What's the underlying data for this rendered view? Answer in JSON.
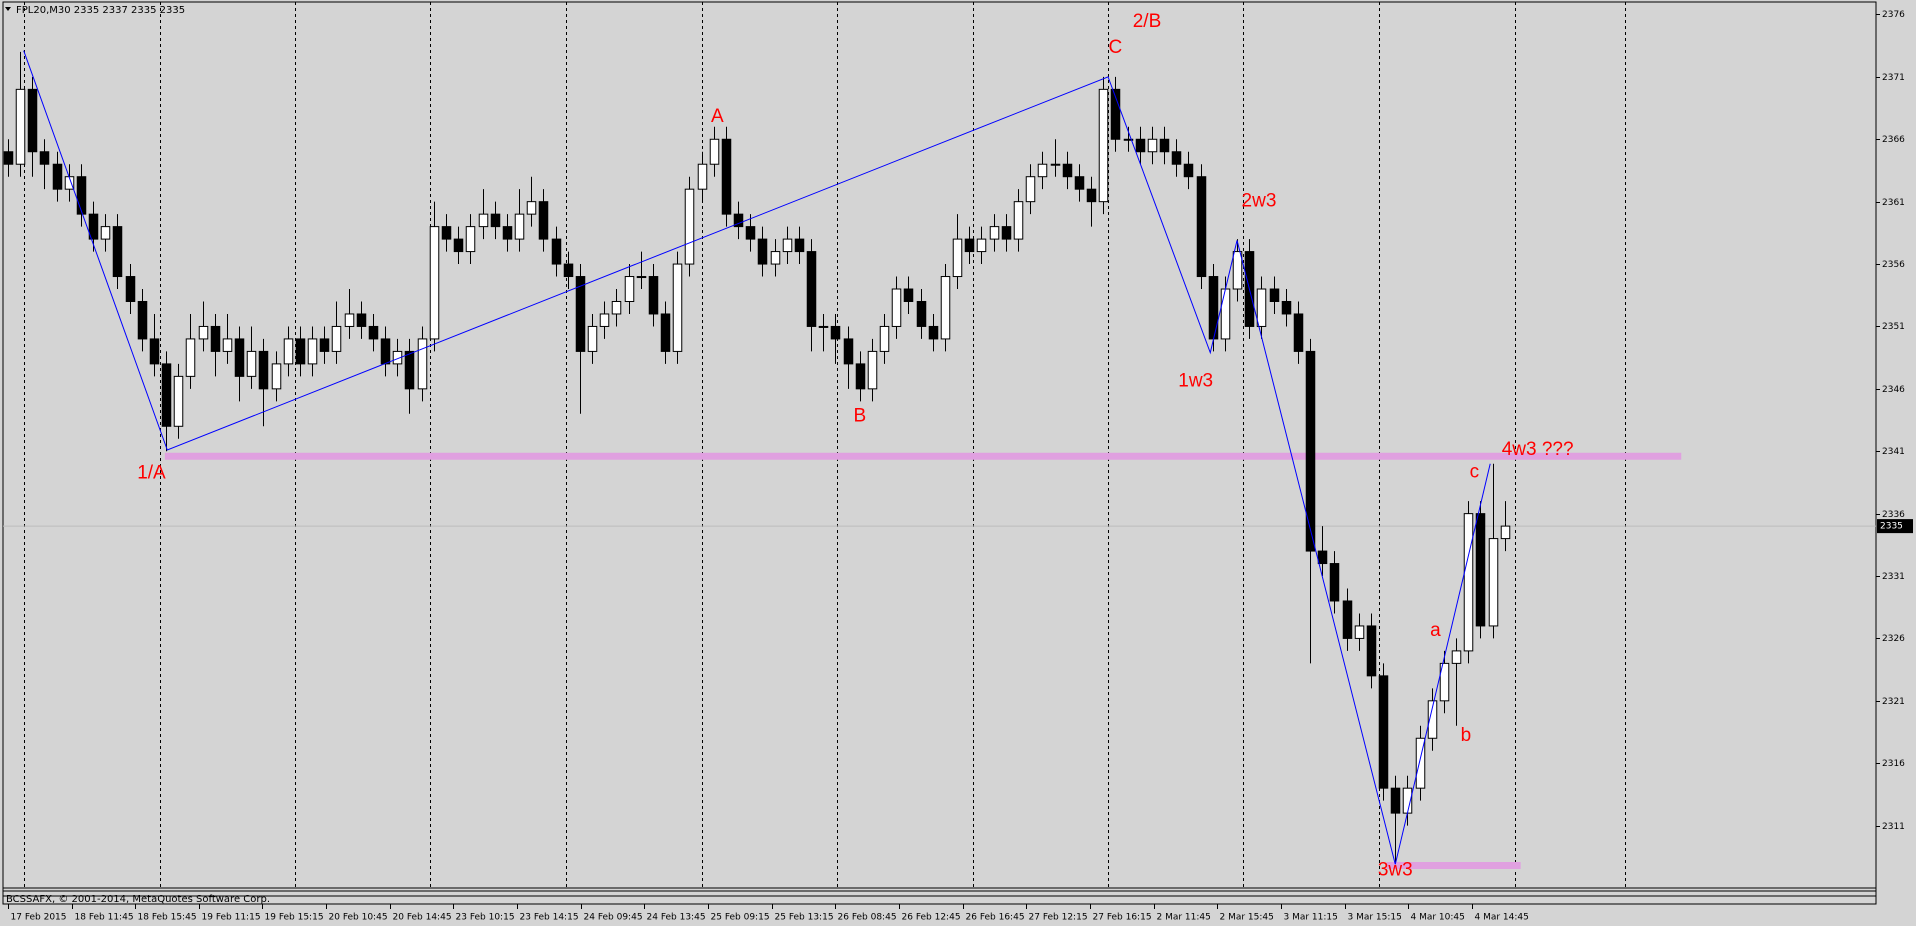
{
  "chart_data": {
    "type": "candlestick",
    "title": "FPL20,M30  2335 2337 2335 2335",
    "footer": "BCSSAFX, © 2001-2014, MetaQuotes Software Corp.",
    "current_price": 2335,
    "xlim": [
      -0.4,
      153.5
    ],
    "ylim": [
      2306,
      2377
    ],
    "yticks": [
      2311,
      2316,
      2321,
      2326,
      2331,
      2336,
      2341,
      2346,
      2351,
      2356,
      2361,
      2366,
      2371,
      2376
    ],
    "xticks": [
      {
        "value": 0,
        "label": "17 Feb 2015"
      },
      {
        "value": 5.23,
        "label": "18 Feb 11:45"
      },
      {
        "value": 10.46,
        "label": "18 Feb 15:45"
      },
      {
        "value": 15.69,
        "label": "19 Feb 11:15"
      },
      {
        "value": 20.92,
        "label": "19 Feb 15:15"
      },
      {
        "value": 26.15,
        "label": "20 Feb 10:45"
      },
      {
        "value": 31.38,
        "label": "20 Feb 14:45"
      },
      {
        "value": 36.61,
        "label": "23 Feb 10:15"
      },
      {
        "value": 41.84,
        "label": "23 Feb 14:15"
      },
      {
        "value": 47.07,
        "label": "24 Feb 09:45"
      },
      {
        "value": 52.3,
        "label": "24 Feb 13:45"
      },
      {
        "value": 57.53,
        "label": "25 Feb 09:15"
      },
      {
        "value": 62.76,
        "label": "25 Feb 13:15"
      },
      {
        "value": 67.99,
        "label": "26 Feb 08:45"
      },
      {
        "value": 73.22,
        "label": "26 Feb 12:45"
      },
      {
        "value": 78.45,
        "label": "26 Feb 16:45"
      },
      {
        "value": 83.68,
        "label": "27 Feb 12:15"
      },
      {
        "value": 88.91,
        "label": "27 Feb 16:15"
      },
      {
        "value": 94.14,
        "label": "2 Mar 11:45"
      },
      {
        "value": 99.37,
        "label": "2 Mar 15:45"
      },
      {
        "value": 104.6,
        "label": "3 Mar 11:15"
      },
      {
        "value": 109.83,
        "label": "3 Mar 15:15"
      },
      {
        "value": 115.06,
        "label": "4 Mar 10:45"
      },
      {
        "value": 120.29,
        "label": "4 Mar 14:45"
      }
    ],
    "separators": [
      1.3,
      12.5,
      23.6,
      34.7,
      45.9,
      57,
      68.1,
      79.3,
      90.4,
      101.5,
      112.7,
      123.8,
      132.9
    ],
    "up_color": "#ffffff",
    "down_color": "#000000",
    "ohlc": [
      [
        2365,
        2366,
        2363,
        2364
      ],
      [
        2364,
        2373,
        2363,
        2370
      ],
      [
        2370,
        2371,
        2363,
        2365
      ],
      [
        2365,
        2366,
        2362,
        2364
      ],
      [
        2364,
        2365,
        2361,
        2362
      ],
      [
        2362,
        2364,
        2361,
        2363
      ],
      [
        2363,
        2364,
        2359,
        2360
      ],
      [
        2360,
        2361,
        2357,
        2358
      ],
      [
        2358,
        2360,
        2357,
        2359
      ],
      [
        2359,
        2360,
        2354,
        2355
      ],
      [
        2355,
        2356,
        2352,
        2353
      ],
      [
        2353,
        2354,
        2349,
        2350
      ],
      [
        2350,
        2352,
        2347,
        2348
      ],
      [
        2348,
        2349,
        2341,
        2343
      ],
      [
        2343,
        2348,
        2342,
        2347
      ],
      [
        2347,
        2352,
        2346,
        2350
      ],
      [
        2350,
        2353,
        2349,
        2351
      ],
      [
        2351,
        2352,
        2347,
        2349
      ],
      [
        2349,
        2352,
        2348,
        2350
      ],
      [
        2350,
        2351,
        2345,
        2347
      ],
      [
        2347,
        2351,
        2346,
        2349
      ],
      [
        2349,
        2350,
        2343,
        2346
      ],
      [
        2346,
        2349,
        2345,
        2348
      ],
      [
        2348,
        2351,
        2347,
        2350
      ],
      [
        2350,
        2351,
        2347,
        2348
      ],
      [
        2348,
        2351,
        2347,
        2350
      ],
      [
        2350,
        2351,
        2348,
        2349
      ],
      [
        2349,
        2353,
        2348,
        2351
      ],
      [
        2351,
        2354,
        2350,
        2352
      ],
      [
        2352,
        2353,
        2350,
        2351
      ],
      [
        2351,
        2352,
        2349,
        2350
      ],
      [
        2350,
        2351,
        2347,
        2348
      ],
      [
        2348,
        2350,
        2347,
        2349
      ],
      [
        2349,
        2350,
        2344,
        2346
      ],
      [
        2346,
        2351,
        2345,
        2350
      ],
      [
        2350,
        2361,
        2349,
        2359
      ],
      [
        2359,
        2360,
        2357,
        2358
      ],
      [
        2358,
        2359,
        2356,
        2357
      ],
      [
        2357,
        2360,
        2356,
        2359
      ],
      [
        2359,
        2362,
        2358,
        2360
      ],
      [
        2360,
        2361,
        2358,
        2359
      ],
      [
        2359,
        2360,
        2357,
        2358
      ],
      [
        2358,
        2362,
        2357,
        2360
      ],
      [
        2360,
        2363,
        2359,
        2361
      ],
      [
        2361,
        2362,
        2357,
        2358
      ],
      [
        2358,
        2359,
        2355,
        2356
      ],
      [
        2356,
        2357,
        2354,
        2355
      ],
      [
        2355,
        2356,
        2344,
        2349
      ],
      [
        2349,
        2352,
        2348,
        2351
      ],
      [
        2351,
        2353,
        2350,
        2352
      ],
      [
        2352,
        2354,
        2351,
        2353
      ],
      [
        2353,
        2356,
        2352,
        2355
      ],
      [
        2355,
        2357,
        2354,
        2355
      ],
      [
        2355,
        2356,
        2351,
        2352
      ],
      [
        2352,
        2353,
        2348,
        2349
      ],
      [
        2349,
        2357,
        2348,
        2356
      ],
      [
        2356,
        2363,
        2355,
        2362
      ],
      [
        2362,
        2365,
        2361,
        2364
      ],
      [
        2364,
        2367,
        2363,
        2366
      ],
      [
        2366,
        2367,
        2359,
        2360
      ],
      [
        2360,
        2361,
        2358,
        2359
      ],
      [
        2359,
        2360,
        2357,
        2358
      ],
      [
        2358,
        2359,
        2355,
        2356
      ],
      [
        2356,
        2358,
        2355,
        2357
      ],
      [
        2357,
        2359,
        2356,
        2358
      ],
      [
        2358,
        2359,
        2356,
        2357
      ],
      [
        2357,
        2358,
        2349,
        2351
      ],
      [
        2351,
        2352,
        2349,
        2351
      ],
      [
        2351,
        2352,
        2348,
        2350
      ],
      [
        2350,
        2351,
        2346,
        2348
      ],
      [
        2348,
        2349,
        2345,
        2346
      ],
      [
        2346,
        2350,
        2345,
        2349
      ],
      [
        2349,
        2352,
        2348,
        2351
      ],
      [
        2351,
        2355,
        2350,
        2354
      ],
      [
        2354,
        2355,
        2352,
        2353
      ],
      [
        2353,
        2354,
        2350,
        2351
      ],
      [
        2351,
        2352,
        2349,
        2350
      ],
      [
        2350,
        2356,
        2349,
        2355
      ],
      [
        2355,
        2360,
        2354,
        2358
      ],
      [
        2358,
        2359,
        2356,
        2357
      ],
      [
        2357,
        2359,
        2356,
        2358
      ],
      [
        2358,
        2360,
        2357,
        2359
      ],
      [
        2359,
        2360,
        2357,
        2358
      ],
      [
        2358,
        2362,
        2357,
        2361
      ],
      [
        2361,
        2364,
        2360,
        2363
      ],
      [
        2363,
        2365,
        2362,
        2364
      ],
      [
        2364,
        2366,
        2363,
        2364
      ],
      [
        2364,
        2365,
        2362,
        2363
      ],
      [
        2363,
        2364,
        2361,
        2362
      ],
      [
        2362,
        2363,
        2359,
        2361
      ],
      [
        2361,
        2371,
        2360,
        2370
      ],
      [
        2370,
        2371,
        2365,
        2366
      ],
      [
        2366,
        2367,
        2365,
        2366
      ],
      [
        2366,
        2367,
        2364,
        2365
      ],
      [
        2365,
        2367,
        2364,
        2366
      ],
      [
        2366,
        2367,
        2364,
        2365
      ],
      [
        2365,
        2366,
        2363,
        2364
      ],
      [
        2364,
        2365,
        2362,
        2363
      ],
      [
        2363,
        2364,
        2354,
        2355
      ],
      [
        2355,
        2356,
        2349,
        2350
      ],
      [
        2350,
        2355,
        2349,
        2354
      ],
      [
        2354,
        2358,
        2353,
        2357
      ],
      [
        2357,
        2358,
        2350,
        2351
      ],
      [
        2351,
        2355,
        2350,
        2354
      ],
      [
        2354,
        2355,
        2352,
        2353
      ],
      [
        2353,
        2354,
        2351,
        2352
      ],
      [
        2352,
        2353,
        2348,
        2349
      ],
      [
        2349,
        2350,
        2324,
        2333
      ],
      [
        2333,
        2335,
        2331,
        2332
      ],
      [
        2332,
        2333,
        2328,
        2329
      ],
      [
        2329,
        2330,
        2325,
        2326
      ],
      [
        2326,
        2328,
        2325,
        2327
      ],
      [
        2327,
        2328,
        2322,
        2323
      ],
      [
        2323,
        2324,
        2313,
        2314
      ],
      [
        2314,
        2315,
        2308,
        2312
      ],
      [
        2312,
        2315,
        2311,
        2314
      ],
      [
        2314,
        2319,
        2313,
        2318
      ],
      [
        2318,
        2322,
        2317,
        2321
      ],
      [
        2321,
        2325,
        2320,
        2324
      ],
      [
        2324,
        2326,
        2319,
        2325
      ],
      [
        2325,
        2337,
        2324,
        2336
      ],
      [
        2336,
        2337,
        2326,
        2327
      ],
      [
        2327,
        2340,
        2326,
        2334
      ],
      [
        2334,
        2337,
        2333,
        2335
      ]
    ],
    "wave_line": {
      "color": "#0000ff",
      "x": [
        1.3,
        13.1,
        90.4,
        98.8,
        101,
        114,
        121.8
      ],
      "y": [
        2373.1,
        2341.1,
        2371,
        2348.9,
        2357.9,
        2307.9,
        2340
      ]
    },
    "levels": [
      {
        "value": 2340.6,
        "from": 12.9,
        "to": 137.5,
        "color": "#e0a0e0"
      },
      {
        "value": 2307.8,
        "from": 113.3,
        "to": 124.3,
        "color": "#e0a0e0"
      }
    ],
    "annotations": [
      {
        "text": "1/A",
        "x": 11.8,
        "y": 2339.2
      },
      {
        "text": "2/B",
        "x": 93.6,
        "y": 2375.4
      },
      {
        "text": "C",
        "x": 91,
        "y": 2373.3
      },
      {
        "text": "A",
        "x": 58.3,
        "y": 2367.8
      },
      {
        "text": "B",
        "x": 70,
        "y": 2343.8
      },
      {
        "text": "1w3",
        "x": 97.6,
        "y": 2346.6
      },
      {
        "text": "2w3",
        "x": 102.8,
        "y": 2361
      },
      {
        "text": "4w3 ???",
        "x": 125.7,
        "y": 2341.1
      },
      {
        "text": "c",
        "x": 120.5,
        "y": 2339.3
      },
      {
        "text": "a",
        "x": 117.3,
        "y": 2326.6
      },
      {
        "text": "b",
        "x": 119.8,
        "y": 2318.2
      },
      {
        "text": "3w3",
        "x": 114,
        "y": 2307.4
      }
    ]
  }
}
